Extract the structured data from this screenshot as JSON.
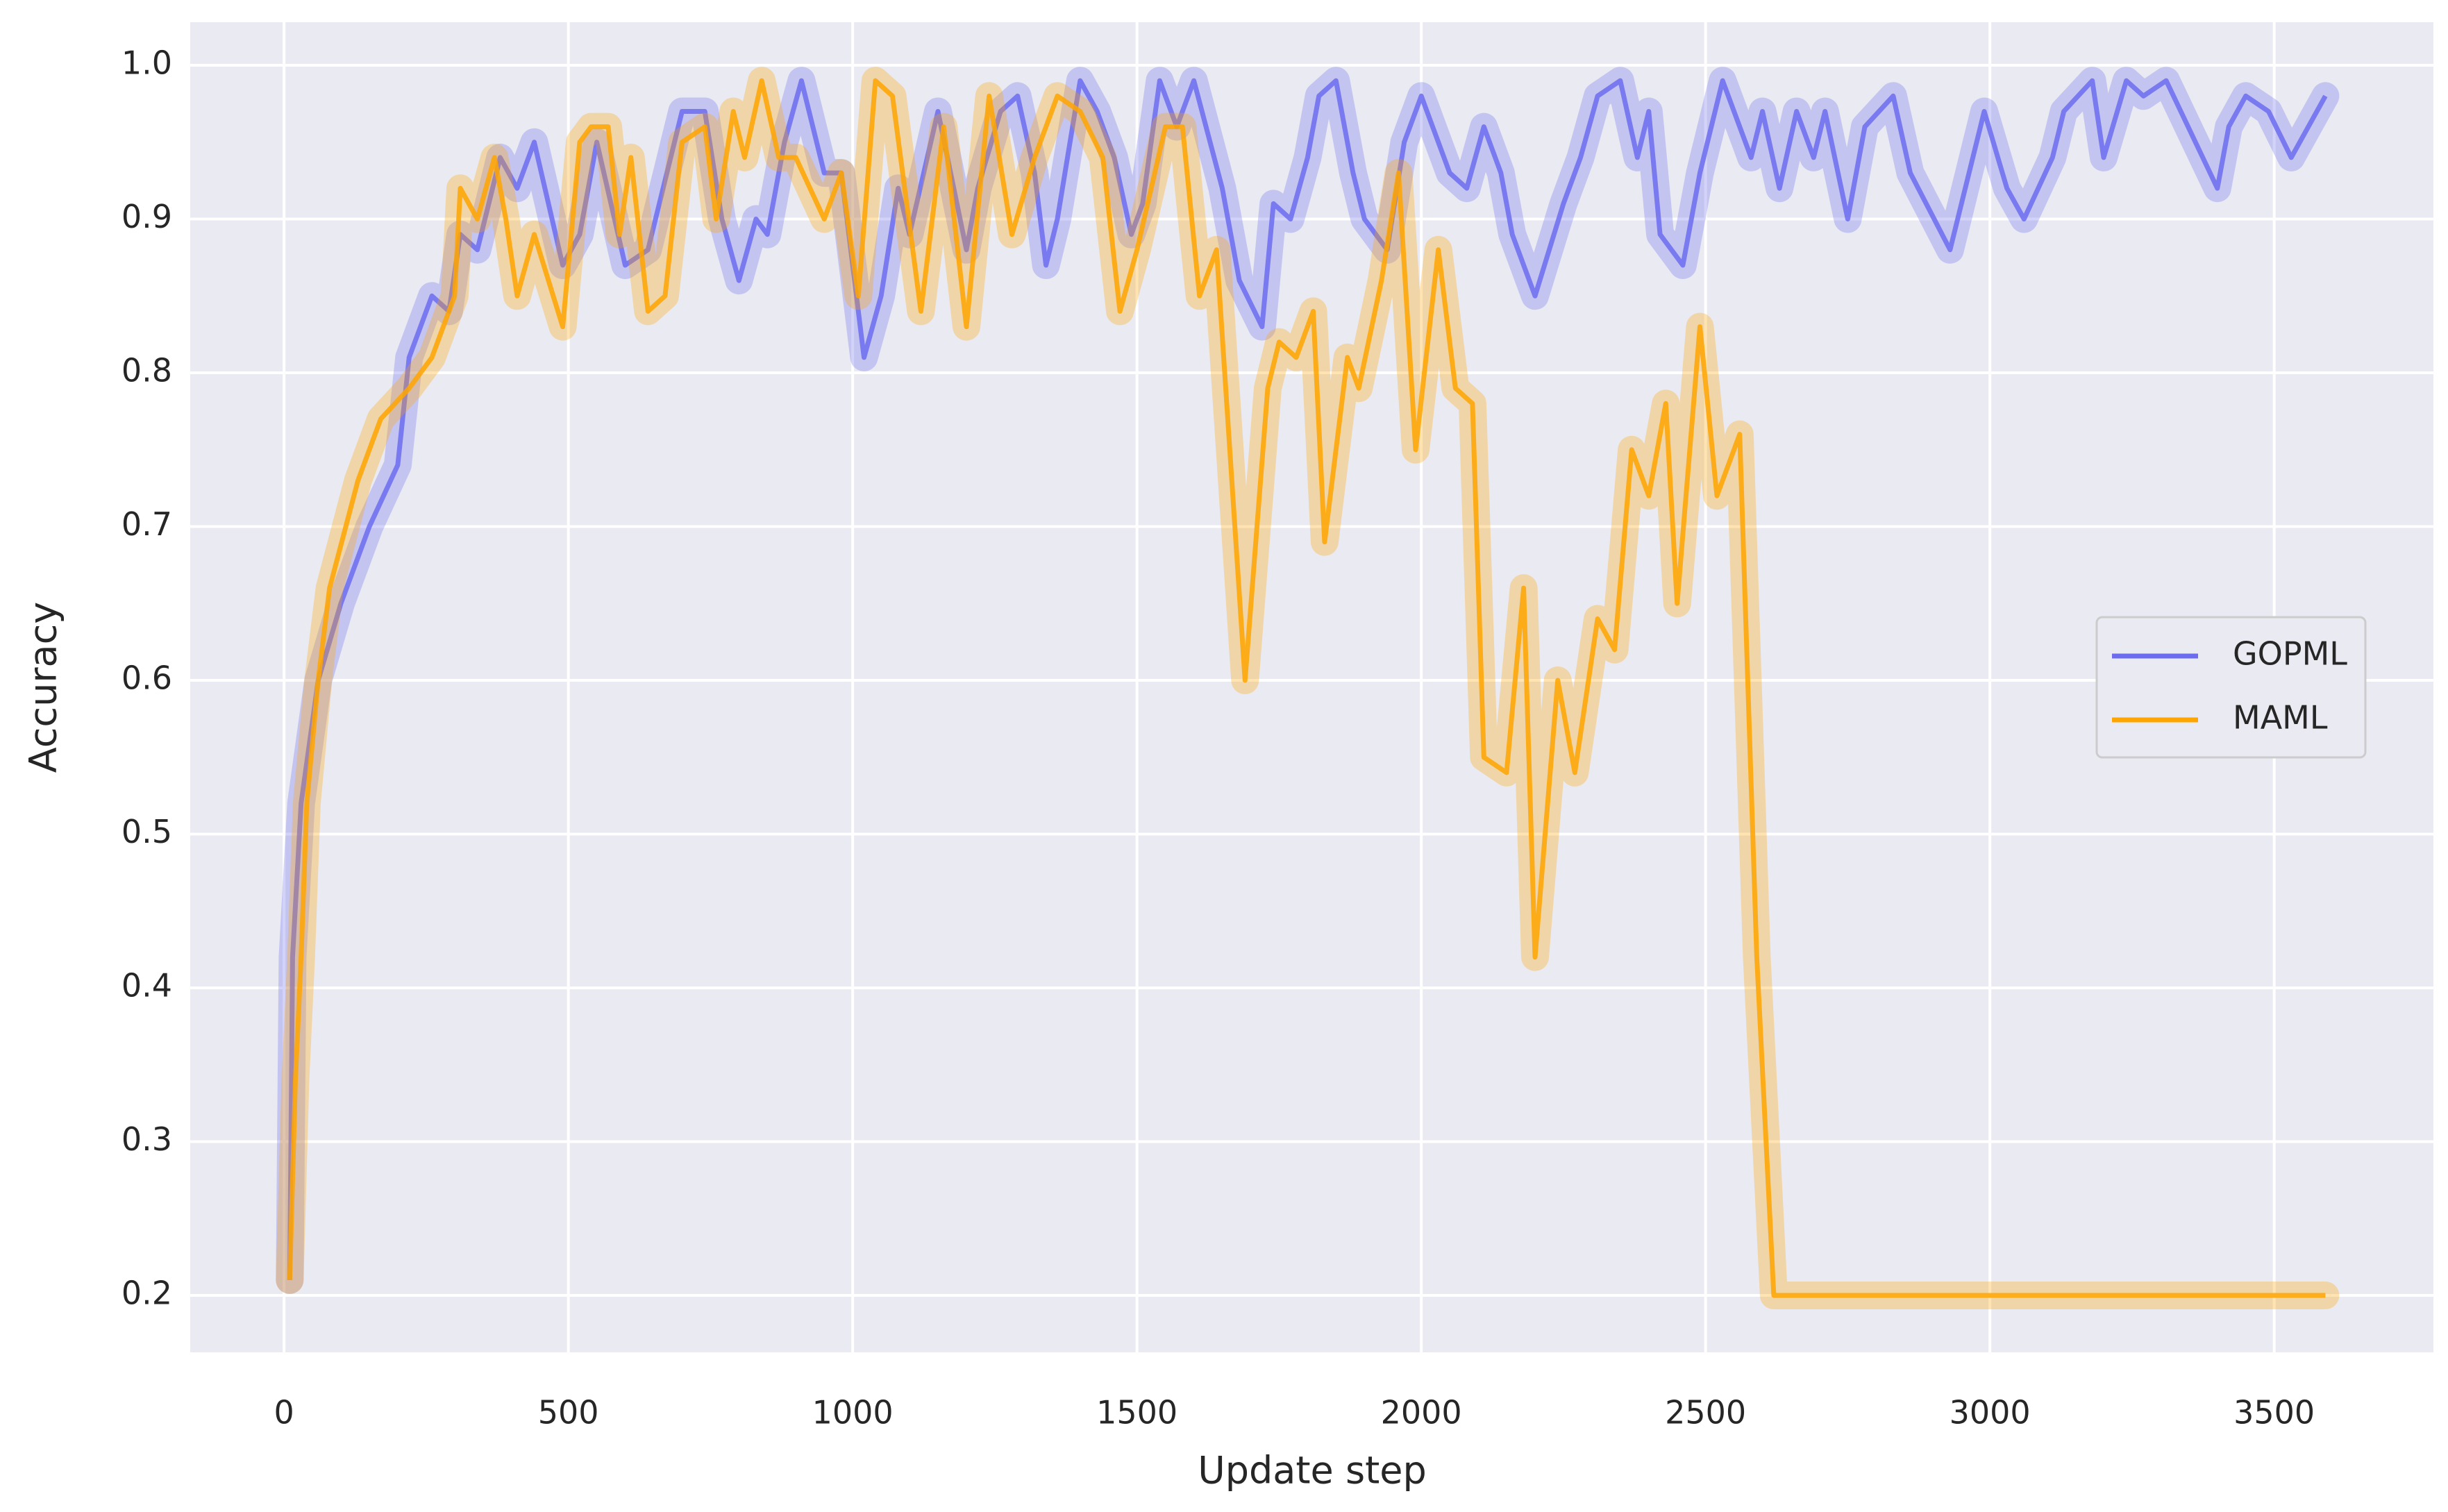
{
  "chart_data": {
    "type": "line",
    "xlabel": "Update step",
    "ylabel": "Accuracy",
    "xlim": [
      -165,
      3780
    ],
    "ylim": [
      0.163,
      1.028
    ],
    "xticks": [
      0,
      500,
      1000,
      1500,
      2000,
      2500,
      3000,
      3500
    ],
    "yticks": [
      0.2,
      0.3,
      0.4,
      0.5,
      0.6,
      0.7,
      0.8,
      0.9,
      {
        "value": 1,
        "label": "1.0"
      }
    ],
    "grid": true,
    "legend": "right",
    "series": [
      {
        "name": "GOPML",
        "color": "#6c6cf0",
        "x": [
          10,
          15,
          30,
          60,
          100,
          150,
          200,
          220,
          260,
          290,
          310,
          340,
          380,
          410,
          440,
          490,
          520,
          550,
          600,
          640,
          700,
          740,
          770,
          800,
          830,
          850,
          880,
          910,
          950,
          980,
          1020,
          1050,
          1080,
          1100,
          1150,
          1200,
          1220,
          1260,
          1290,
          1320,
          1340,
          1360,
          1400,
          1430,
          1460,
          1490,
          1510,
          1540,
          1570,
          1600,
          1650,
          1680,
          1720,
          1740,
          1770,
          1800,
          1820,
          1850,
          1880,
          1900,
          1940,
          1970,
          2000,
          2020,
          2050,
          2080,
          2110,
          2140,
          2160,
          2200,
          2250,
          2280,
          2310,
          2350,
          2380,
          2400,
          2420,
          2460,
          2490,
          2530,
          2580,
          2600,
          2630,
          2660,
          2690,
          2710,
          2750,
          2780,
          2830,
          2860,
          2930,
          2990,
          3030,
          3060,
          3110,
          3130,
          3180,
          3200,
          3240,
          3270,
          3310,
          3400,
          3420,
          3450,
          3490,
          3530,
          3590
        ],
        "values": [
          0.21,
          0.42,
          0.52,
          0.6,
          0.65,
          0.7,
          0.74,
          0.81,
          0.85,
          0.84,
          0.89,
          0.88,
          0.94,
          0.92,
          0.95,
          0.87,
          0.89,
          0.95,
          0.87,
          0.88,
          0.97,
          0.97,
          0.9,
          0.86,
          0.9,
          0.89,
          0.95,
          0.99,
          0.93,
          0.93,
          0.81,
          0.85,
          0.92,
          0.89,
          0.97,
          0.88,
          0.92,
          0.97,
          0.98,
          0.93,
          0.87,
          0.9,
          0.99,
          0.97,
          0.94,
          0.89,
          0.91,
          0.99,
          0.96,
          0.99,
          0.92,
          0.86,
          0.83,
          0.91,
          0.9,
          0.94,
          0.98,
          0.99,
          0.93,
          0.9,
          0.88,
          0.95,
          0.98,
          0.96,
          0.93,
          0.92,
          0.96,
          0.93,
          0.89,
          0.85,
          0.91,
          0.94,
          0.98,
          0.99,
          0.94,
          0.97,
          0.89,
          0.87,
          0.93,
          0.99,
          0.94,
          0.97,
          0.92,
          0.97,
          0.94,
          0.97,
          0.9,
          0.96,
          0.98,
          0.93,
          0.88,
          0.97,
          0.92,
          0.9,
          0.94,
          0.97,
          0.99,
          0.94,
          0.99,
          0.98,
          0.99,
          0.92,
          0.96,
          0.98,
          0.97,
          0.94,
          0.98
        ]
      },
      {
        "name": "MAML",
        "color": "#ffa500",
        "x": [
          10,
          20,
          30,
          40,
          60,
          80,
          130,
          170,
          220,
          260,
          300,
          310,
          340,
          370,
          390,
          410,
          440,
          490,
          520,
          540,
          570,
          590,
          610,
          640,
          670,
          700,
          740,
          760,
          790,
          810,
          840,
          870,
          900,
          950,
          980,
          1010,
          1040,
          1070,
          1120,
          1160,
          1200,
          1240,
          1280,
          1320,
          1360,
          1400,
          1440,
          1470,
          1500,
          1550,
          1580,
          1610,
          1640,
          1690,
          1730,
          1750,
          1780,
          1810,
          1830,
          1870,
          1890,
          1930,
          1960,
          1990,
          2030,
          2060,
          2090,
          2110,
          2150,
          2170,
          2180,
          2200,
          2240,
          2270,
          2310,
          2340,
          2370,
          2400,
          2430,
          2450,
          2490,
          2520,
          2560,
          2590,
          2620,
          3590
        ],
        "values": [
          0.21,
          0.34,
          0.42,
          0.52,
          0.6,
          0.66,
          0.73,
          0.77,
          0.79,
          0.81,
          0.85,
          0.92,
          0.9,
          0.94,
          0.9,
          0.85,
          0.89,
          0.83,
          0.95,
          0.96,
          0.96,
          0.89,
          0.94,
          0.84,
          0.85,
          0.95,
          0.96,
          0.9,
          0.97,
          0.94,
          0.99,
          0.94,
          0.94,
          0.9,
          0.93,
          0.85,
          0.99,
          0.98,
          0.84,
          0.96,
          0.83,
          0.98,
          0.89,
          0.94,
          0.98,
          0.97,
          0.94,
          0.84,
          0.88,
          0.96,
          0.96,
          0.85,
          0.88,
          0.6,
          0.79,
          0.82,
          0.81,
          0.84,
          0.69,
          0.81,
          0.79,
          0.86,
          0.93,
          0.75,
          0.88,
          0.79,
          0.78,
          0.55,
          0.54,
          0.62,
          0.66,
          0.42,
          0.6,
          0.54,
          0.64,
          0.62,
          0.75,
          0.72,
          0.78,
          0.65,
          0.83,
          0.72,
          0.76,
          0.42,
          0.2,
          0.2
        ]
      }
    ]
  }
}
